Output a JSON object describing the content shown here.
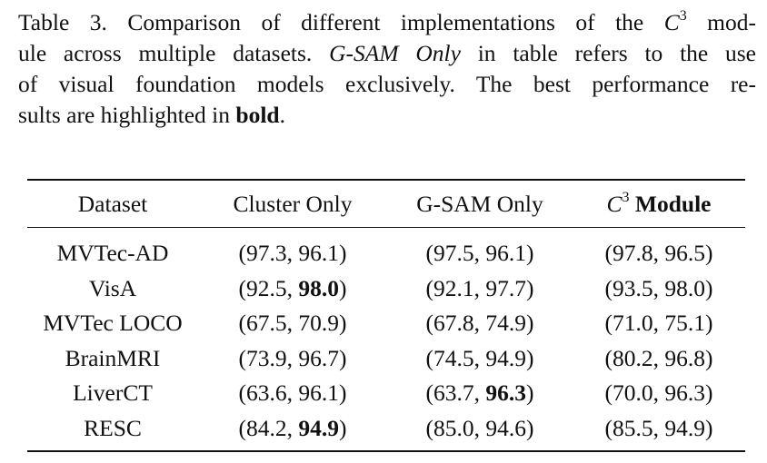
{
  "caption": {
    "l1_pre": "Table 3. Comparison of different implementations of the ",
    "c": "C",
    "exp": "3",
    "l1_post": " mod-",
    "l2_pre": "ule across multiple datasets. ",
    "l2_ital": "G-SAM Only",
    "l2_post": " in table refers to the use",
    "l3": "of visual foundation models exclusively. The best performance re-",
    "l4_pre": "sults are highlighted in ",
    "l4_bold": "bold",
    "l4_post": "."
  },
  "table": {
    "headers": {
      "dataset": "Dataset",
      "cluster": "Cluster Only",
      "gsam": "G-SAM Only",
      "c3_c": "C",
      "c3_exp": "3",
      "c3_word": " Module"
    },
    "rows": [
      {
        "dataset": "MVTec-AD",
        "cluster": {
          "open": "(",
          "a": "97.3",
          "sep": ", ",
          "b": "96.1",
          "close": ")"
        },
        "gsam": {
          "open": "(",
          "a": "97.5",
          "sep": ", ",
          "b": "96.1",
          "close": ")"
        },
        "c3": "(97.8, 96.5)"
      },
      {
        "dataset": "VisA",
        "cluster": {
          "open": "(",
          "a": "92.5",
          "sep": ", ",
          "b": "98.0",
          "close": ")"
        },
        "gsam": {
          "open": "(",
          "a": "92.1",
          "sep": ", ",
          "b": "97.7",
          "close": ")"
        },
        "c3": "(93.5, 98.0)"
      },
      {
        "dataset": "MVTec LOCO",
        "cluster": {
          "open": "(",
          "a": "67.5",
          "sep": ", ",
          "b": "70.9",
          "close": ")"
        },
        "gsam": {
          "open": "(",
          "a": "67.8",
          "sep": ", ",
          "b": "74.9",
          "close": ")"
        },
        "c3": "(71.0, 75.1)"
      },
      {
        "dataset": "BrainMRI",
        "cluster": {
          "open": "(",
          "a": "73.9",
          "sep": ", ",
          "b": "96.7",
          "close": ")"
        },
        "gsam": {
          "open": "(",
          "a": "74.5",
          "sep": ", ",
          "b": "94.9",
          "close": ")"
        },
        "c3": "(80.2, 96.8)"
      },
      {
        "dataset": "LiverCT",
        "cluster": {
          "open": "(",
          "a": "63.6",
          "sep": ", ",
          "b": "96.1",
          "close": ")"
        },
        "gsam": {
          "open": "(",
          "a": "63.7",
          "sep": ", ",
          "b": "96.3",
          "close": ")"
        },
        "c3": "(70.0, 96.3)"
      },
      {
        "dataset": "RESC",
        "cluster": {
          "open": "(",
          "a": "84.2",
          "sep": ", ",
          "b": "94.9",
          "close": ")"
        },
        "gsam": {
          "open": "(",
          "a": "85.0",
          "sep": ", ",
          "b": "94.6",
          "close": ")"
        },
        "c3": "(85.5, 94.9)"
      }
    ]
  }
}
